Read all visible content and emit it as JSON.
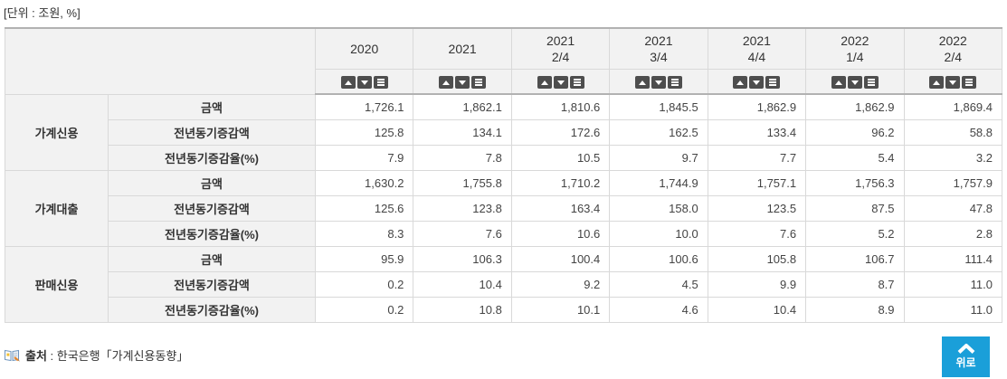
{
  "unit_label": "[단위 : 조원, %]",
  "colors": {
    "accent_blue": "#1a9fd9",
    "sort_button_bg": "#4e4e4e",
    "header_bg": "#f2f2f2"
  },
  "table": {
    "columns": [
      "2020",
      "2021",
      "2021\n2/4",
      "2021\n3/4",
      "2021\n4/4",
      "2022\n1/4",
      "2022\n2/4"
    ],
    "sort_icons": [
      "sort-ascending",
      "sort-descending",
      "sort-list"
    ],
    "groups": [
      {
        "label": "가계신용",
        "rows": [
          {
            "metric": "금액",
            "values": [
              "1,726.1",
              "1,862.1",
              "1,810.6",
              "1,845.5",
              "1,862.9",
              "1,862.9",
              "1,869.4"
            ]
          },
          {
            "metric": "전년동기증감액",
            "values": [
              "125.8",
              "134.1",
              "172.6",
              "162.5",
              "133.4",
              "96.2",
              "58.8"
            ]
          },
          {
            "metric": "전년동기증감율(%)",
            "values": [
              "7.9",
              "7.8",
              "10.5",
              "9.7",
              "7.7",
              "5.4",
              "3.2"
            ]
          }
        ]
      },
      {
        "label": "가계대출",
        "rows": [
          {
            "metric": "금액",
            "values": [
              "1,630.2",
              "1,755.8",
              "1,710.2",
              "1,744.9",
              "1,757.1",
              "1,756.3",
              "1,757.9"
            ]
          },
          {
            "metric": "전년동기증감액",
            "values": [
              "125.6",
              "123.8",
              "163.4",
              "158.0",
              "123.5",
              "87.5",
              "47.8"
            ]
          },
          {
            "metric": "전년동기증감율(%)",
            "values": [
              "8.3",
              "7.6",
              "10.6",
              "10.0",
              "7.6",
              "5.2",
              "2.8"
            ]
          }
        ]
      },
      {
        "label": "판매신용",
        "rows": [
          {
            "metric": "금액",
            "values": [
              "95.9",
              "106.3",
              "100.4",
              "100.6",
              "105.8",
              "106.7",
              "111.4"
            ]
          },
          {
            "metric": "전년동기증감액",
            "values": [
              "0.2",
              "10.4",
              "9.2",
              "4.5",
              "9.9",
              "8.7",
              "11.0"
            ]
          },
          {
            "metric": "전년동기증감율(%)",
            "values": [
              "0.2",
              "10.8",
              "10.1",
              "4.6",
              "10.4",
              "8.9",
              "11.0"
            ]
          }
        ]
      }
    ]
  },
  "source": {
    "label": "출처",
    "separator": " : ",
    "text": "한국은행「가계신용동향」"
  },
  "top_button": {
    "label": "위로"
  }
}
